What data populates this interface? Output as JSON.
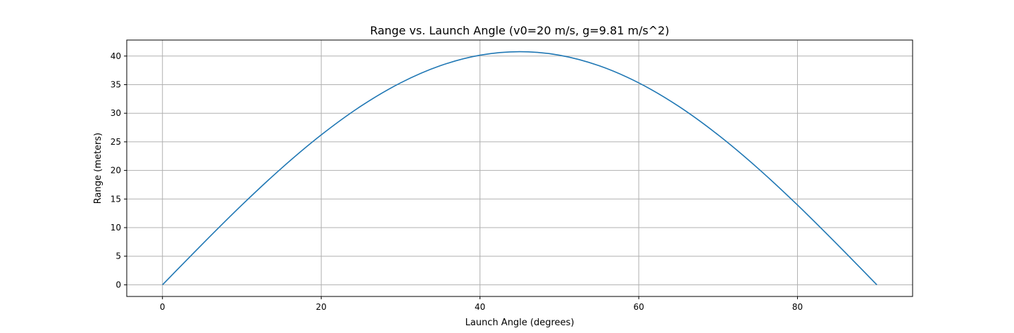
{
  "chart_data": {
    "type": "line",
    "title": "Range vs. Launch Angle (v0=20 m/s, g=9.81 m/s^2)",
    "xlabel": "Launch Angle (degrees)",
    "ylabel": "Range (meters)",
    "xlim": [
      -4.5,
      94.5
    ],
    "ylim": [
      -2.04,
      42.8
    ],
    "xticks": [
      0,
      20,
      40,
      60,
      80
    ],
    "yticks": [
      0,
      5,
      10,
      15,
      20,
      25,
      30,
      35,
      40
    ],
    "grid": true,
    "series": [
      {
        "color": "#1f77b4",
        "x": [
          0,
          5,
          10,
          15,
          20,
          25,
          30,
          35,
          40,
          45,
          50,
          55,
          60,
          65,
          70,
          75,
          80,
          85,
          90
        ],
        "y": [
          0,
          7.08,
          13.95,
          20.39,
          26.21,
          31.24,
          35.31,
          38.31,
          40.15,
          40.77,
          40.15,
          38.31,
          35.31,
          31.24,
          26.21,
          20.39,
          13.95,
          7.08,
          0
        ]
      }
    ]
  }
}
